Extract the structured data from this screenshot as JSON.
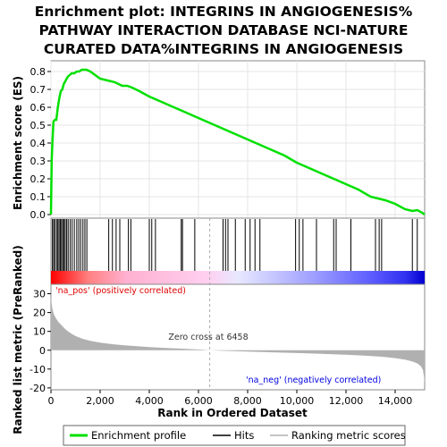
{
  "title_lines": [
    "Enrichment plot: INTEGRINS IN ANGIOGENESIS%",
    "PATHWAY INTERACTION DATABASE NCI-NATURE",
    "CURATED DATA%INTEGRINS IN ANGIOGENESIS"
  ],
  "colors": {
    "profile": "#00e000",
    "hits": "#000000",
    "metric": "#b0b0b0",
    "pos_label": "#e00000",
    "neg_label": "#0000e0",
    "zero_line": "#aaaaaa"
  },
  "chart_data": {
    "type": "line",
    "x_total": 15200,
    "xlim": [
      0,
      15200
    ],
    "xlabel": "Rank in Ordered Dataset",
    "x_ticks": [
      0,
      2000,
      4000,
      6000,
      8000,
      10000,
      12000,
      14000
    ],
    "x_tick_labels": [
      "0",
      "2,000",
      "4,000",
      "6,000",
      "8,000",
      "10,000",
      "12,000",
      "14,000"
    ],
    "es": {
      "ylabel": "Enrichment score (ES)",
      "ylim": [
        -0.02,
        0.86
      ],
      "y_ticks": [
        0.0,
        0.1,
        0.2,
        0.3,
        0.4,
        0.5,
        0.6,
        0.7,
        0.8
      ],
      "y_tick_labels": [
        "0.0",
        "0.1",
        "0.2",
        "0.3",
        "0.4",
        "0.5",
        "0.6",
        "0.7",
        "0.8"
      ],
      "x": [
        0,
        30,
        60,
        100,
        160,
        220,
        280,
        340,
        400,
        460,
        520,
        600,
        680,
        760,
        840,
        950,
        1050,
        1150,
        1250,
        1350,
        1450,
        1600,
        1800,
        2000,
        2300,
        2600,
        2900,
        3100,
        3300,
        3600,
        4000,
        4500,
        5000,
        5500,
        6000,
        6500,
        7000,
        7500,
        8000,
        8500,
        9000,
        9500,
        10000,
        10500,
        11000,
        11500,
        12000,
        12500,
        13000,
        13300,
        13600,
        14000,
        14400,
        14700,
        14900,
        15100,
        15200
      ],
      "y": [
        0.0,
        0.3,
        0.4,
        0.52,
        0.53,
        0.53,
        0.6,
        0.65,
        0.69,
        0.7,
        0.73,
        0.75,
        0.77,
        0.78,
        0.79,
        0.79,
        0.8,
        0.8,
        0.81,
        0.81,
        0.81,
        0.8,
        0.78,
        0.76,
        0.75,
        0.74,
        0.72,
        0.72,
        0.71,
        0.69,
        0.66,
        0.63,
        0.6,
        0.57,
        0.54,
        0.51,
        0.48,
        0.45,
        0.42,
        0.39,
        0.36,
        0.33,
        0.29,
        0.26,
        0.23,
        0.2,
        0.17,
        0.14,
        0.1,
        0.09,
        0.08,
        0.06,
        0.03,
        0.02,
        0.025,
        0.01,
        0.0
      ],
      "series_name": "Enrichment profile"
    },
    "hits": {
      "series_name": "Hits",
      "positions": [
        60,
        110,
        160,
        230,
        280,
        330,
        380,
        430,
        480,
        530,
        580,
        640,
        700,
        780,
        860,
        950,
        1050,
        1130,
        1210,
        1300,
        1380,
        1460,
        2350,
        2500,
        2650,
        2800,
        3150,
        3250,
        4000,
        4100,
        4250,
        5300,
        5350,
        5850,
        7000,
        7100,
        7200,
        7500,
        7900,
        8100,
        8300,
        8500,
        9950,
        10100,
        10250,
        10800,
        11500,
        11600,
        12200,
        13200,
        13350,
        13450,
        14700,
        14900
      ]
    },
    "metric": {
      "ylabel": "Ranked list metric (PreRanked)",
      "ylim": [
        -21,
        35
      ],
      "y_ticks": [
        -20,
        -10,
        0,
        10,
        20,
        30
      ],
      "y_tick_labels": [
        "-20",
        "-10",
        "0",
        "10",
        "20",
        "30"
      ],
      "x": [
        0,
        20,
        60,
        120,
        200,
        300,
        450,
        600,
        800,
        1000,
        1300,
        1600,
        2000,
        2500,
        3000,
        3500,
        4000,
        4500,
        5000,
        5500,
        6000,
        6458,
        7000,
        8000,
        9000,
        10000,
        11000,
        12000,
        12800,
        13500,
        14000,
        14400,
        14700,
        14900,
        15050,
        15130,
        15170,
        15200
      ],
      "y": [
        30,
        26,
        22,
        19,
        17,
        15,
        13,
        11,
        9,
        7.5,
        6,
        5,
        4,
        3.2,
        2.6,
        2.1,
        1.7,
        1.3,
        1.0,
        0.7,
        0.4,
        0.0,
        -0.3,
        -0.7,
        -1.1,
        -1.5,
        -1.9,
        -2.4,
        -2.9,
        -3.5,
        -4.2,
        -5.0,
        -6.0,
        -7.0,
        -8.5,
        -10.5,
        -14,
        -18
      ],
      "series_name": "Ranking metric scores"
    },
    "zero_cross": 6458,
    "zero_cross_label": "Zero cross at 6458",
    "pos_label": "'na_pos' (positively correlated)",
    "neg_label": "'na_neg' (negatively correlated)",
    "legend": [
      "Enrichment profile",
      "Hits",
      "Ranking metric scores"
    ]
  }
}
